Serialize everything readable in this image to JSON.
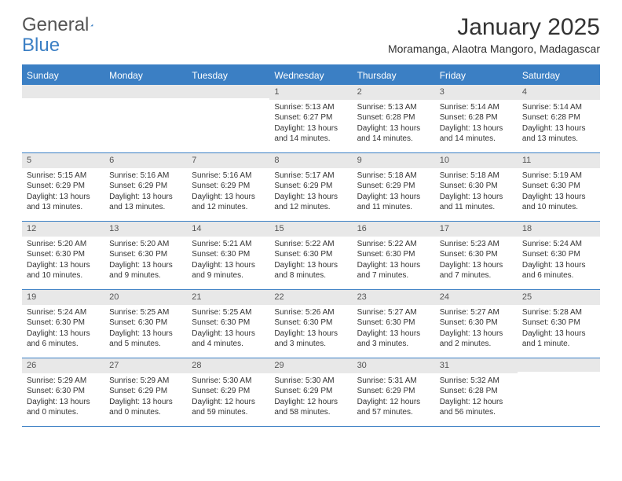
{
  "brand": {
    "part1": "General",
    "part2": "Blue"
  },
  "title": "January 2025",
  "location": "Moramanga, Alaotra Mangoro, Madagascar",
  "colors": {
    "accent": "#3b7fc4",
    "dayNumBg": "#e8e8e8",
    "text": "#333333",
    "background": "#ffffff"
  },
  "dayNames": [
    "Sunday",
    "Monday",
    "Tuesday",
    "Wednesday",
    "Thursday",
    "Friday",
    "Saturday"
  ],
  "weeks": [
    [
      {
        "n": "",
        "sr": "",
        "ss": "",
        "dl": ""
      },
      {
        "n": "",
        "sr": "",
        "ss": "",
        "dl": ""
      },
      {
        "n": "",
        "sr": "",
        "ss": "",
        "dl": ""
      },
      {
        "n": "1",
        "sr": "5:13 AM",
        "ss": "6:27 PM",
        "dl": "13 hours and 14 minutes."
      },
      {
        "n": "2",
        "sr": "5:13 AM",
        "ss": "6:28 PM",
        "dl": "13 hours and 14 minutes."
      },
      {
        "n": "3",
        "sr": "5:14 AM",
        "ss": "6:28 PM",
        "dl": "13 hours and 14 minutes."
      },
      {
        "n": "4",
        "sr": "5:14 AM",
        "ss": "6:28 PM",
        "dl": "13 hours and 13 minutes."
      }
    ],
    [
      {
        "n": "5",
        "sr": "5:15 AM",
        "ss": "6:29 PM",
        "dl": "13 hours and 13 minutes."
      },
      {
        "n": "6",
        "sr": "5:16 AM",
        "ss": "6:29 PM",
        "dl": "13 hours and 13 minutes."
      },
      {
        "n": "7",
        "sr": "5:16 AM",
        "ss": "6:29 PM",
        "dl": "13 hours and 12 minutes."
      },
      {
        "n": "8",
        "sr": "5:17 AM",
        "ss": "6:29 PM",
        "dl": "13 hours and 12 minutes."
      },
      {
        "n": "9",
        "sr": "5:18 AM",
        "ss": "6:29 PM",
        "dl": "13 hours and 11 minutes."
      },
      {
        "n": "10",
        "sr": "5:18 AM",
        "ss": "6:30 PM",
        "dl": "13 hours and 11 minutes."
      },
      {
        "n": "11",
        "sr": "5:19 AM",
        "ss": "6:30 PM",
        "dl": "13 hours and 10 minutes."
      }
    ],
    [
      {
        "n": "12",
        "sr": "5:20 AM",
        "ss": "6:30 PM",
        "dl": "13 hours and 10 minutes."
      },
      {
        "n": "13",
        "sr": "5:20 AM",
        "ss": "6:30 PM",
        "dl": "13 hours and 9 minutes."
      },
      {
        "n": "14",
        "sr": "5:21 AM",
        "ss": "6:30 PM",
        "dl": "13 hours and 9 minutes."
      },
      {
        "n": "15",
        "sr": "5:22 AM",
        "ss": "6:30 PM",
        "dl": "13 hours and 8 minutes."
      },
      {
        "n": "16",
        "sr": "5:22 AM",
        "ss": "6:30 PM",
        "dl": "13 hours and 7 minutes."
      },
      {
        "n": "17",
        "sr": "5:23 AM",
        "ss": "6:30 PM",
        "dl": "13 hours and 7 minutes."
      },
      {
        "n": "18",
        "sr": "5:24 AM",
        "ss": "6:30 PM",
        "dl": "13 hours and 6 minutes."
      }
    ],
    [
      {
        "n": "19",
        "sr": "5:24 AM",
        "ss": "6:30 PM",
        "dl": "13 hours and 6 minutes."
      },
      {
        "n": "20",
        "sr": "5:25 AM",
        "ss": "6:30 PM",
        "dl": "13 hours and 5 minutes."
      },
      {
        "n": "21",
        "sr": "5:25 AM",
        "ss": "6:30 PM",
        "dl": "13 hours and 4 minutes."
      },
      {
        "n": "22",
        "sr": "5:26 AM",
        "ss": "6:30 PM",
        "dl": "13 hours and 3 minutes."
      },
      {
        "n": "23",
        "sr": "5:27 AM",
        "ss": "6:30 PM",
        "dl": "13 hours and 3 minutes."
      },
      {
        "n": "24",
        "sr": "5:27 AM",
        "ss": "6:30 PM",
        "dl": "13 hours and 2 minutes."
      },
      {
        "n": "25",
        "sr": "5:28 AM",
        "ss": "6:30 PM",
        "dl": "13 hours and 1 minute."
      }
    ],
    [
      {
        "n": "26",
        "sr": "5:29 AM",
        "ss": "6:30 PM",
        "dl": "13 hours and 0 minutes."
      },
      {
        "n": "27",
        "sr": "5:29 AM",
        "ss": "6:29 PM",
        "dl": "13 hours and 0 minutes."
      },
      {
        "n": "28",
        "sr": "5:30 AM",
        "ss": "6:29 PM",
        "dl": "12 hours and 59 minutes."
      },
      {
        "n": "29",
        "sr": "5:30 AM",
        "ss": "6:29 PM",
        "dl": "12 hours and 58 minutes."
      },
      {
        "n": "30",
        "sr": "5:31 AM",
        "ss": "6:29 PM",
        "dl": "12 hours and 57 minutes."
      },
      {
        "n": "31",
        "sr": "5:32 AM",
        "ss": "6:28 PM",
        "dl": "12 hours and 56 minutes."
      },
      {
        "n": "",
        "sr": "",
        "ss": "",
        "dl": ""
      }
    ]
  ],
  "labels": {
    "sunrise": "Sunrise:",
    "sunset": "Sunset:",
    "daylight": "Daylight:"
  }
}
